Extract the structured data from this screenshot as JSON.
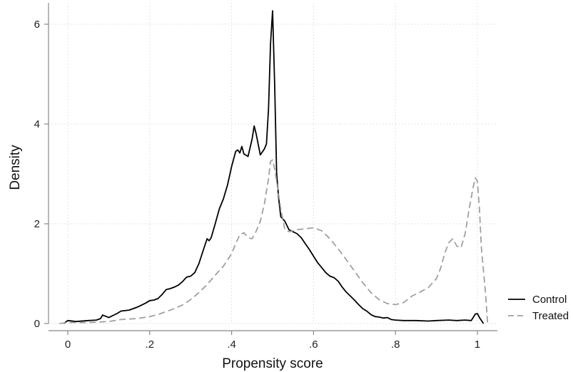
{
  "chart_data": {
    "type": "line",
    "title": "",
    "xlabel": "Propensity score",
    "ylabel": "Density",
    "xlim": [
      -0.025,
      1.025
    ],
    "ylim": [
      0,
      6.3
    ],
    "xticks": [
      {
        "value": 0,
        "label": "0"
      },
      {
        "value": 0.2,
        "label": ".2"
      },
      {
        "value": 0.4,
        "label": ".4"
      },
      {
        "value": 0.6,
        "label": ".6"
      },
      {
        "value": 0.8,
        "label": ".8"
      },
      {
        "value": 1,
        "label": "1"
      }
    ],
    "yticks": [
      {
        "value": 0,
        "label": "0"
      },
      {
        "value": 2,
        "label": "2"
      },
      {
        "value": 4,
        "label": "4"
      },
      {
        "value": 6,
        "label": "6"
      }
    ],
    "grid": true,
    "legend_position": "right",
    "series": [
      {
        "name": "Control",
        "color": "#000000",
        "style": "solid",
        "points": [
          [
            -0.01,
            0.0
          ],
          [
            0.0,
            0.06
          ],
          [
            0.02,
            0.04
          ],
          [
            0.05,
            0.06
          ],
          [
            0.07,
            0.07
          ],
          [
            0.08,
            0.1
          ],
          [
            0.085,
            0.17
          ],
          [
            0.1,
            0.12
          ],
          [
            0.12,
            0.2
          ],
          [
            0.13,
            0.25
          ],
          [
            0.15,
            0.27
          ],
          [
            0.17,
            0.33
          ],
          [
            0.19,
            0.41
          ],
          [
            0.2,
            0.46
          ],
          [
            0.21,
            0.47
          ],
          [
            0.22,
            0.5
          ],
          [
            0.23,
            0.58
          ],
          [
            0.24,
            0.68
          ],
          [
            0.25,
            0.7
          ],
          [
            0.26,
            0.73
          ],
          [
            0.27,
            0.77
          ],
          [
            0.28,
            0.84
          ],
          [
            0.29,
            0.93
          ],
          [
            0.3,
            0.95
          ],
          [
            0.31,
            1.02
          ],
          [
            0.32,
            1.2
          ],
          [
            0.33,
            1.45
          ],
          [
            0.34,
            1.7
          ],
          [
            0.345,
            1.66
          ],
          [
            0.35,
            1.72
          ],
          [
            0.36,
            2.0
          ],
          [
            0.37,
            2.3
          ],
          [
            0.38,
            2.5
          ],
          [
            0.39,
            2.78
          ],
          [
            0.4,
            3.15
          ],
          [
            0.41,
            3.45
          ],
          [
            0.415,
            3.48
          ],
          [
            0.42,
            3.42
          ],
          [
            0.425,
            3.55
          ],
          [
            0.43,
            3.4
          ],
          [
            0.44,
            3.35
          ],
          [
            0.45,
            3.7
          ],
          [
            0.455,
            3.96
          ],
          [
            0.46,
            3.8
          ],
          [
            0.47,
            3.38
          ],
          [
            0.48,
            3.5
          ],
          [
            0.485,
            3.6
          ],
          [
            0.49,
            4.3
          ],
          [
            0.495,
            5.6
          ],
          [
            0.5,
            6.27
          ],
          [
            0.505,
            4.8
          ],
          [
            0.51,
            3.0
          ],
          [
            0.515,
            2.5
          ],
          [
            0.52,
            2.14
          ],
          [
            0.53,
            2.05
          ],
          [
            0.54,
            1.88
          ],
          [
            0.55,
            1.84
          ],
          [
            0.56,
            1.8
          ],
          [
            0.57,
            1.72
          ],
          [
            0.58,
            1.6
          ],
          [
            0.59,
            1.48
          ],
          [
            0.6,
            1.35
          ],
          [
            0.61,
            1.22
          ],
          [
            0.62,
            1.12
          ],
          [
            0.63,
            1.02
          ],
          [
            0.64,
            0.95
          ],
          [
            0.65,
            0.92
          ],
          [
            0.66,
            0.85
          ],
          [
            0.67,
            0.73
          ],
          [
            0.68,
            0.63
          ],
          [
            0.69,
            0.55
          ],
          [
            0.7,
            0.47
          ],
          [
            0.71,
            0.38
          ],
          [
            0.72,
            0.3
          ],
          [
            0.73,
            0.25
          ],
          [
            0.74,
            0.18
          ],
          [
            0.75,
            0.14
          ],
          [
            0.76,
            0.13
          ],
          [
            0.77,
            0.11
          ],
          [
            0.78,
            0.12
          ],
          [
            0.79,
            0.08
          ],
          [
            0.8,
            0.07
          ],
          [
            0.82,
            0.06
          ],
          [
            0.85,
            0.06
          ],
          [
            0.88,
            0.05
          ],
          [
            0.9,
            0.06
          ],
          [
            0.93,
            0.07
          ],
          [
            0.95,
            0.06
          ],
          [
            0.97,
            0.07
          ],
          [
            0.985,
            0.06
          ],
          [
            0.995,
            0.19
          ],
          [
            1.0,
            0.2
          ],
          [
            1.005,
            0.12
          ],
          [
            1.015,
            0.0
          ]
        ]
      },
      {
        "name": "Treated",
        "color": "#a0a0a0",
        "style": "dashed",
        "points": [
          [
            -0.02,
            0.0
          ],
          [
            0.0,
            0.02
          ],
          [
            0.05,
            0.02
          ],
          [
            0.1,
            0.04
          ],
          [
            0.13,
            0.08
          ],
          [
            0.17,
            0.1
          ],
          [
            0.2,
            0.14
          ],
          [
            0.22,
            0.18
          ],
          [
            0.24,
            0.24
          ],
          [
            0.26,
            0.3
          ],
          [
            0.28,
            0.37
          ],
          [
            0.3,
            0.48
          ],
          [
            0.32,
            0.62
          ],
          [
            0.34,
            0.78
          ],
          [
            0.36,
            0.97
          ],
          [
            0.38,
            1.15
          ],
          [
            0.4,
            1.4
          ],
          [
            0.41,
            1.6
          ],
          [
            0.42,
            1.78
          ],
          [
            0.43,
            1.82
          ],
          [
            0.44,
            1.72
          ],
          [
            0.45,
            1.7
          ],
          [
            0.46,
            1.85
          ],
          [
            0.47,
            2.05
          ],
          [
            0.48,
            2.4
          ],
          [
            0.49,
            2.9
          ],
          [
            0.495,
            3.25
          ],
          [
            0.5,
            3.28
          ],
          [
            0.505,
            3.1
          ],
          [
            0.51,
            2.85
          ],
          [
            0.52,
            2.3
          ],
          [
            0.53,
            1.88
          ],
          [
            0.54,
            1.84
          ],
          [
            0.55,
            1.86
          ],
          [
            0.56,
            1.88
          ],
          [
            0.58,
            1.9
          ],
          [
            0.6,
            1.92
          ],
          [
            0.62,
            1.86
          ],
          [
            0.64,
            1.7
          ],
          [
            0.66,
            1.5
          ],
          [
            0.68,
            1.28
          ],
          [
            0.7,
            1.05
          ],
          [
            0.72,
            0.82
          ],
          [
            0.74,
            0.62
          ],
          [
            0.76,
            0.48
          ],
          [
            0.78,
            0.4
          ],
          [
            0.8,
            0.38
          ],
          [
            0.82,
            0.42
          ],
          [
            0.84,
            0.55
          ],
          [
            0.86,
            0.63
          ],
          [
            0.88,
            0.72
          ],
          [
            0.9,
            0.9
          ],
          [
            0.91,
            1.1
          ],
          [
            0.92,
            1.4
          ],
          [
            0.93,
            1.62
          ],
          [
            0.94,
            1.7
          ],
          [
            0.95,
            1.55
          ],
          [
            0.96,
            1.52
          ],
          [
            0.97,
            1.8
          ],
          [
            0.98,
            2.3
          ],
          [
            0.99,
            2.75
          ],
          [
            0.995,
            2.92
          ],
          [
            1.0,
            2.85
          ],
          [
            1.005,
            2.3
          ],
          [
            1.01,
            1.5
          ],
          [
            1.02,
            0.6
          ],
          [
            1.025,
            0.0
          ]
        ]
      }
    ]
  }
}
